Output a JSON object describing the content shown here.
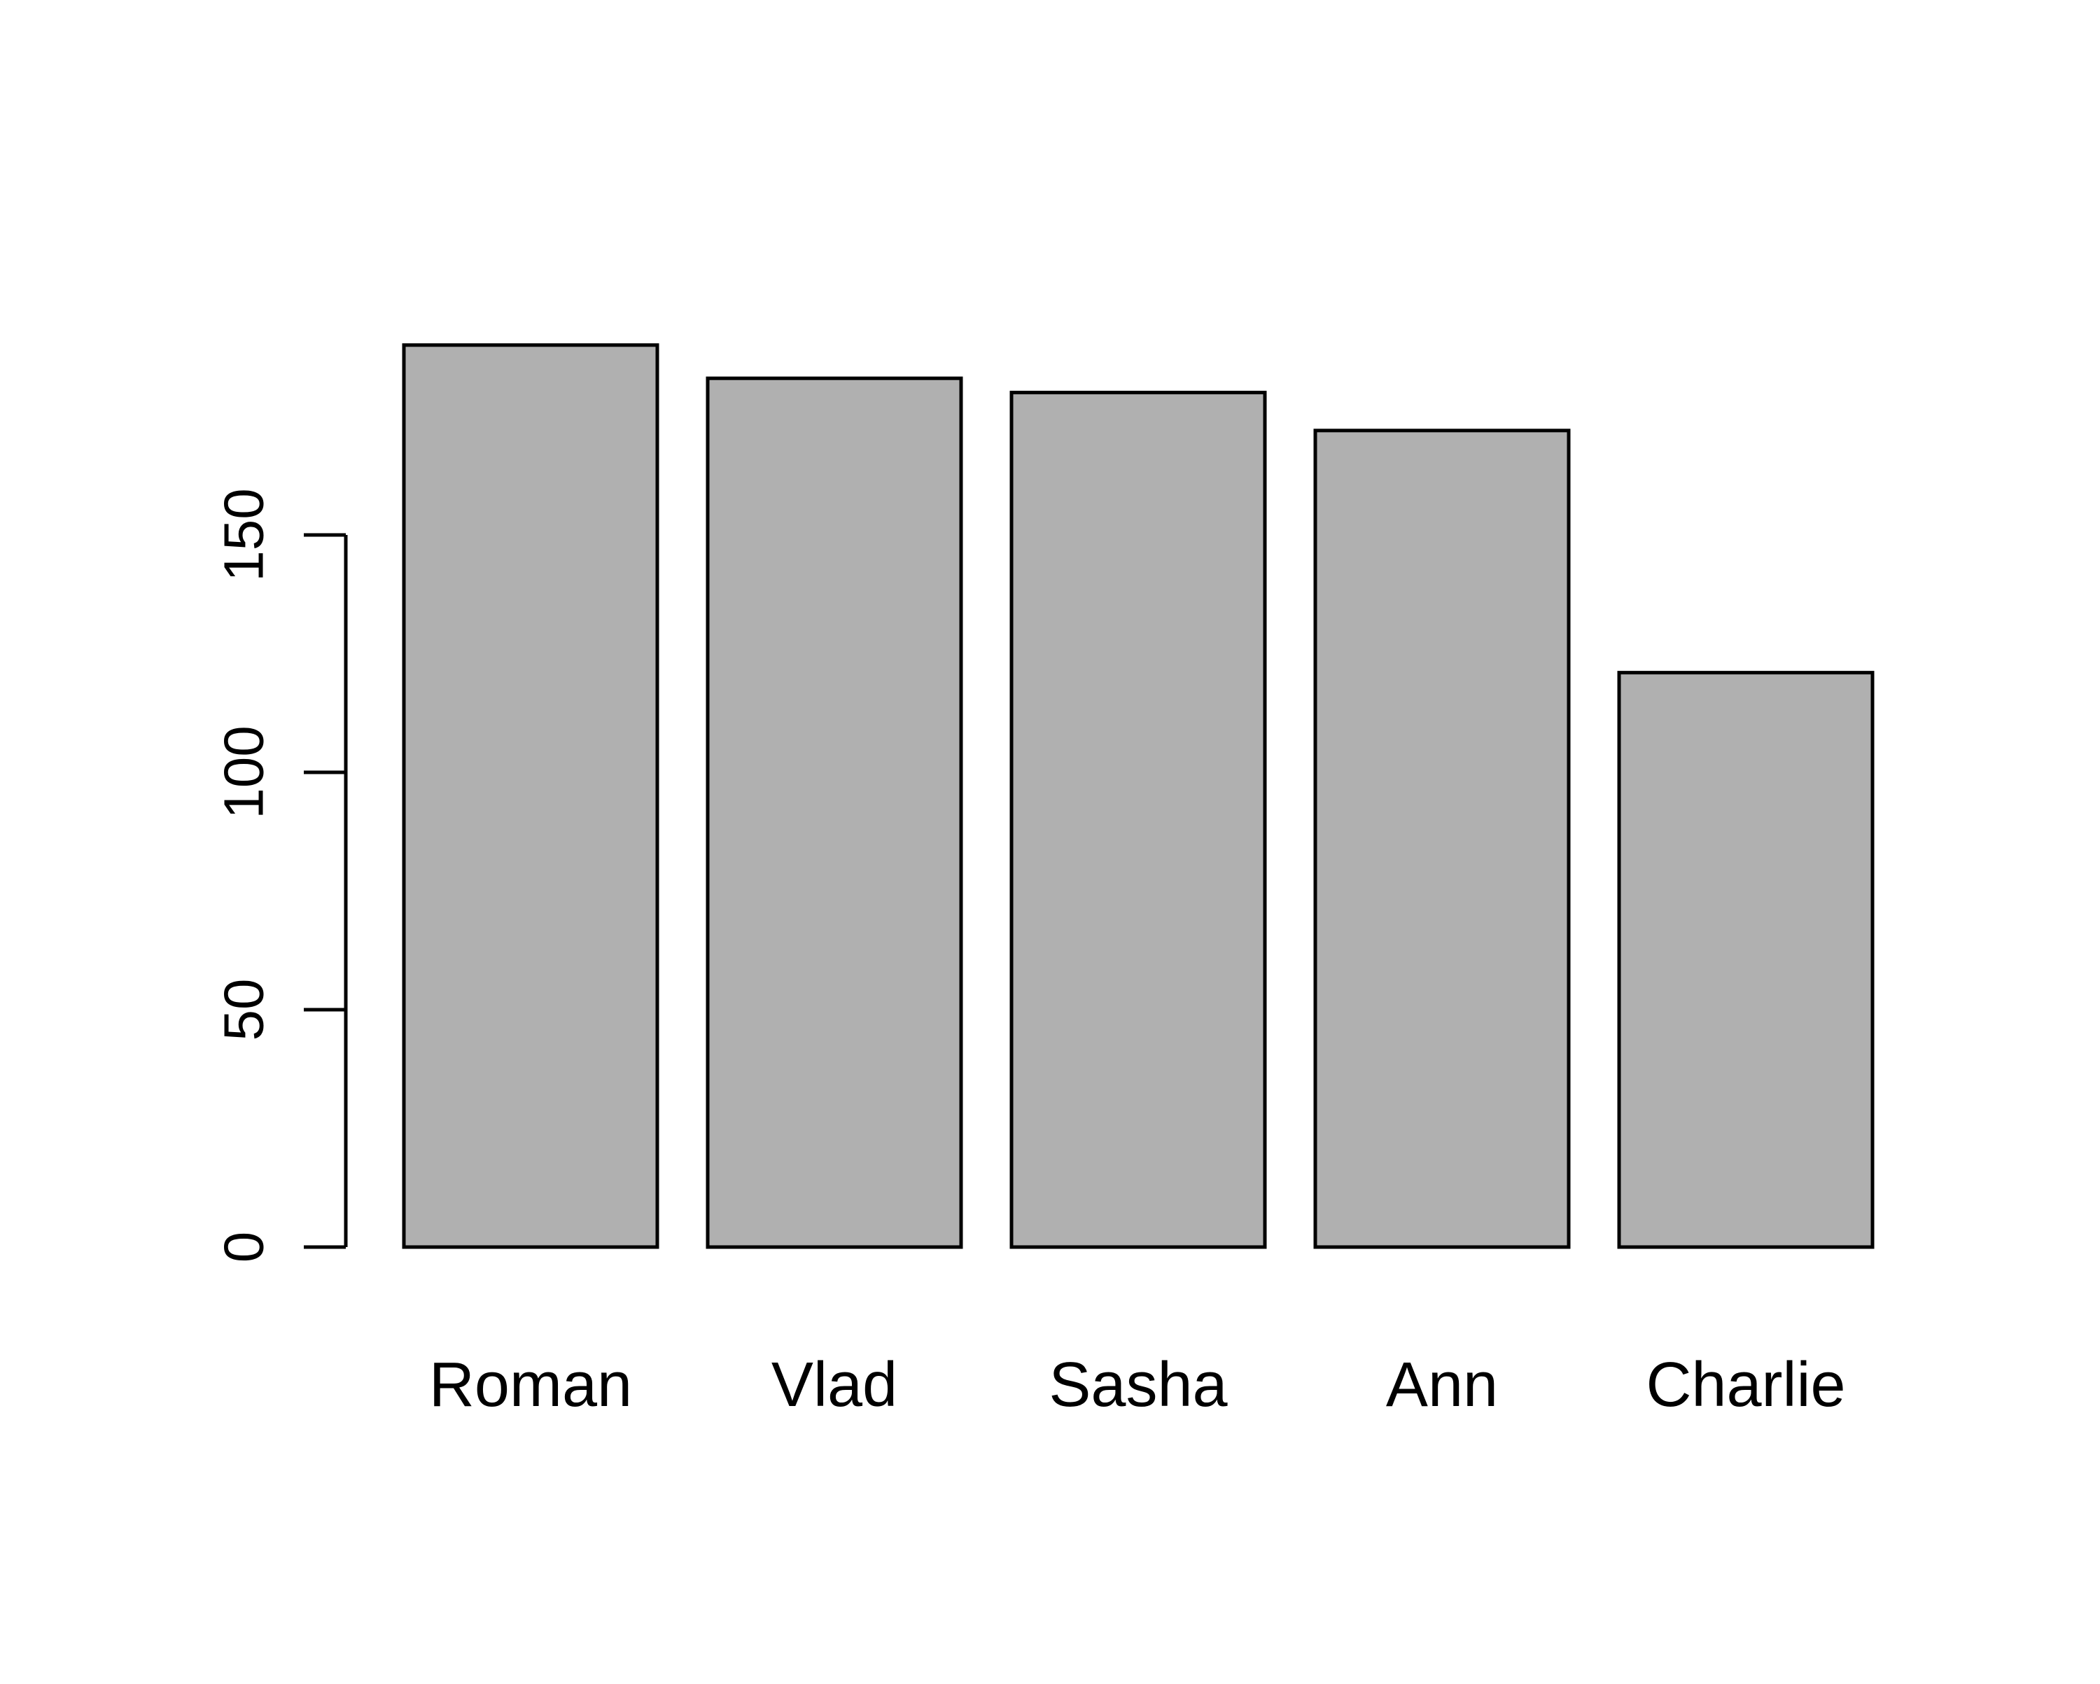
{
  "chart_data": {
    "type": "bar",
    "title": "",
    "xlabel": "",
    "ylabel": "",
    "categories": [
      "Roman",
      "Vlad",
      "Sasha",
      "Ann",
      "Charlie"
    ],
    "values": [
      190,
      183,
      180,
      172,
      121
    ],
    "ylim": [
      0,
      190
    ],
    "yticks": [
      0,
      50,
      100,
      150
    ],
    "grid": false,
    "legend": "none",
    "colors": {
      "bar_fill": "#b0b0b0",
      "bar_stroke": "#000000",
      "axis": "#000000",
      "text": "#000000",
      "background": "#ffffff"
    }
  }
}
